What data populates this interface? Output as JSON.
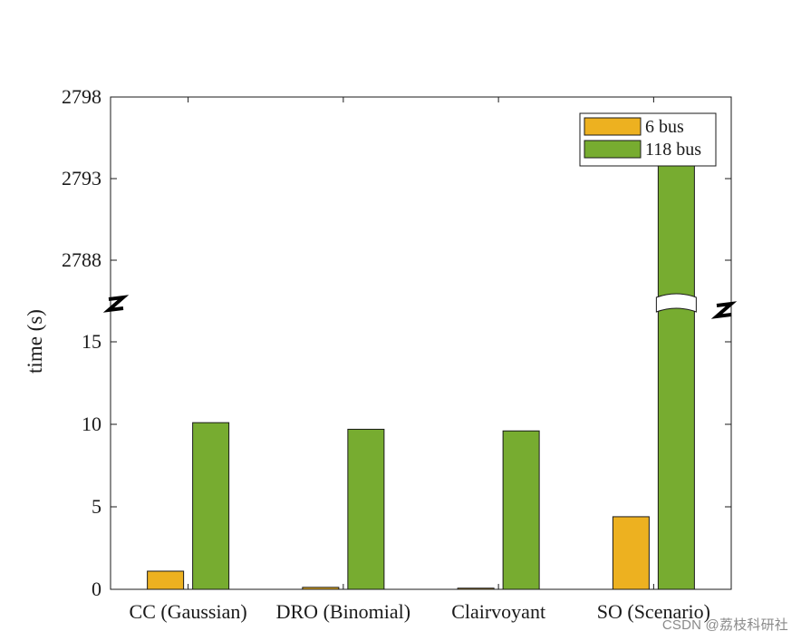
{
  "chart_data": {
    "type": "bar",
    "categories": [
      "CC (Gaussian)",
      "DRO (Binomial)",
      "Clairvoyant",
      "SO (Scenario)"
    ],
    "series": [
      {
        "name": "6 bus",
        "color": "#EDB120",
        "values": [
          1.1,
          0.12,
          0.07,
          4.4
        ]
      },
      {
        "name": "118 bus",
        "color": "#77AC30",
        "values": [
          10.1,
          9.7,
          9.6,
          2794.7
        ]
      }
    ],
    "ylabel": "time (s)",
    "xlabel": "",
    "title": "",
    "axis_break": {
      "lower_range": [
        0,
        17
      ],
      "upper_range": [
        2786,
        2798
      ]
    },
    "y_tick_labels": [
      "0",
      "5",
      "10",
      "15",
      "2788",
      "2793",
      "2798"
    ],
    "grid": false,
    "legend_position": "top-right"
  },
  "watermark": "CSDN @荔枝科研社"
}
